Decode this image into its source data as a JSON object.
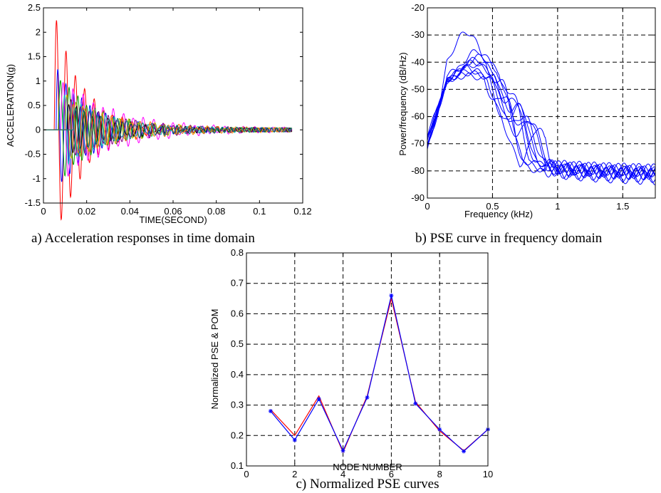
{
  "chart_data": [
    {
      "id": "a",
      "type": "line",
      "caption": "a) Acceleration responses in time domain",
      "xlabel": "TIME(SECOND)",
      "ylabel": "ACCELERATION(g)",
      "xlim": [
        0,
        0.12
      ],
      "ylim": [
        -1.5,
        2.5
      ],
      "xticks": [
        0,
        0.02,
        0.04,
        0.06,
        0.08,
        0.1,
        0.12
      ],
      "xtick_labels": [
        "0",
        "0.02",
        "0.04",
        "0.06",
        "0.08",
        "0.1",
        "0.12"
      ],
      "yticks": [
        -1.5,
        -1,
        -0.5,
        0,
        0.5,
        1,
        1.5,
        2,
        2.5
      ],
      "ytick_labels": [
        "-1.5",
        "-1",
        "-0.5",
        "0",
        "0.5",
        "1",
        "1.5",
        "2",
        "2.5"
      ],
      "grid": false,
      "x_end": 0.115,
      "series": [
        {
          "color": "#ff0000",
          "onset": 0.005,
          "amp": 2.4,
          "freq": 230,
          "decay": 75
        },
        {
          "color": "#0000ff",
          "onset": 0.006,
          "amp": 1.25,
          "freq": 270,
          "decay": 60
        },
        {
          "color": "#00a000",
          "onset": 0.007,
          "amp": 1.1,
          "freq": 250,
          "decay": 55
        },
        {
          "color": "#ff00ff",
          "onset": 0.008,
          "amp": 1.05,
          "freq": 215,
          "decay": 40
        },
        {
          "color": "#00bfbf",
          "onset": 0.009,
          "amp": 0.75,
          "freq": 260,
          "decay": 50
        },
        {
          "color": "#bfbf00",
          "onset": 0.01,
          "amp": 0.7,
          "freq": 245,
          "decay": 45
        },
        {
          "color": "#000000",
          "onset": 0.011,
          "amp": 0.55,
          "freq": 280,
          "decay": 50
        },
        {
          "color": "#800080",
          "onset": 0.012,
          "amp": 0.6,
          "freq": 235,
          "decay": 42
        },
        {
          "color": "#ff8000",
          "onset": 0.013,
          "amp": 0.55,
          "freq": 225,
          "decay": 40
        },
        {
          "color": "#008080",
          "onset": 0.014,
          "amp": 0.5,
          "freq": 255,
          "decay": 45
        }
      ]
    },
    {
      "id": "b",
      "type": "line",
      "caption": "b) PSE curve in frequency domain",
      "xlabel": "Frequency (kHz)",
      "ylabel": "Power/frequency (dB/Hz)",
      "xlim": [
        0,
        1.75
      ],
      "ylim": [
        -90,
        -20
      ],
      "xticks": [
        0,
        0.5,
        1,
        1.5
      ],
      "xtick_labels": [
        "0",
        "0.5",
        "1",
        "1.5"
      ],
      "yticks": [
        -90,
        -80,
        -70,
        -60,
        -50,
        -40,
        -30,
        -20
      ],
      "ytick_labels": [
        "-90",
        "-80",
        "-70",
        "-60",
        "-50",
        "-40",
        "-30",
        "-20"
      ],
      "grid": true,
      "series_color": "#0000ff",
      "series": [
        {
          "peak_f": 0.3,
          "peak_v": -29,
          "p2_f": 0.7,
          "p2_v": -56,
          "floor": -81
        },
        {
          "peak_f": 0.38,
          "peak_v": -36,
          "p2_f": 0.65,
          "p2_v": -55,
          "floor": -82
        },
        {
          "peak_f": 0.35,
          "peak_v": -40,
          "p2_f": 0.75,
          "p2_v": -60,
          "floor": -80
        },
        {
          "peak_f": 0.28,
          "peak_v": -42,
          "p2_f": 0.6,
          "p2_v": -54,
          "floor": -83
        },
        {
          "peak_f": 0.4,
          "peak_v": -38,
          "p2_f": 0.8,
          "p2_v": -62,
          "floor": -81
        },
        {
          "peak_f": 0.33,
          "peak_v": -44,
          "p2_f": 0.55,
          "p2_v": -43,
          "floor": -80
        },
        {
          "peak_f": 0.37,
          "peak_v": -39,
          "p2_f": 0.72,
          "p2_v": -58,
          "floor": -82
        },
        {
          "peak_f": 0.31,
          "peak_v": -45,
          "p2_f": 0.85,
          "p2_v": -64,
          "floor": -84
        },
        {
          "peak_f": 0.36,
          "peak_v": -41,
          "p2_f": 0.68,
          "p2_v": -57,
          "floor": -81
        },
        {
          "peak_f": 0.34,
          "peak_v": -43,
          "p2_f": 0.78,
          "p2_v": -61,
          "floor": -82
        }
      ]
    },
    {
      "id": "c",
      "type": "line",
      "caption": "c) Normalized PSE curves",
      "xlabel": "NODE NUMBER",
      "ylabel": "Normalized PSE & POM",
      "xlim": [
        0,
        10
      ],
      "ylim": [
        0.1,
        0.8
      ],
      "xticks": [
        0,
        2,
        4,
        6,
        8,
        10
      ],
      "xtick_labels": [
        "0",
        "2",
        "4",
        "6",
        "8",
        "10"
      ],
      "yticks": [
        0.1,
        0.2,
        0.3,
        0.4,
        0.5,
        0.6,
        0.7,
        0.8
      ],
      "ytick_labels": [
        "0.1",
        "0.2",
        "0.3",
        "0.4",
        "0.5",
        "0.6",
        "0.7",
        "0.8"
      ],
      "grid": true,
      "x": [
        1,
        2,
        3,
        4,
        5,
        6,
        7,
        8,
        9,
        10
      ],
      "series": [
        {
          "color": "#ff0000",
          "marker": "none",
          "values": [
            0.285,
            0.2,
            0.33,
            0.145,
            0.33,
            0.65,
            0.31,
            0.215,
            0.15,
            0.22
          ]
        },
        {
          "color": "#0000ff",
          "marker": "star",
          "values": [
            0.28,
            0.185,
            0.32,
            0.15,
            0.325,
            0.66,
            0.305,
            0.22,
            0.148,
            0.22
          ]
        }
      ]
    }
  ]
}
